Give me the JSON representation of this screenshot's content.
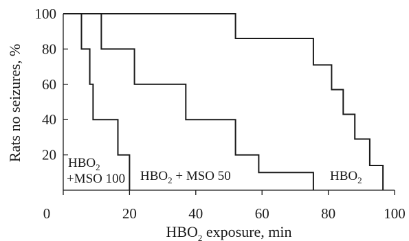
{
  "chart_data": {
    "type": "line",
    "step": true,
    "xlabel": "HBO",
    "xlabel_sub": "2",
    "xlabel_suffix": " exposure, min",
    "ylabel": "Rats no seizures, %",
    "xlim": [
      0,
      100
    ],
    "ylim": [
      0,
      100
    ],
    "xticks": [
      0,
      20,
      40,
      60,
      80,
      100
    ],
    "yticks": [
      20,
      40,
      60,
      80,
      100
    ],
    "grid": false,
    "series": [
      {
        "name": "HBO2 +MSO 100",
        "points": [
          [
            0,
            100
          ],
          [
            5.5,
            100
          ],
          [
            5.5,
            80
          ],
          [
            8,
            80
          ],
          [
            8,
            60
          ],
          [
            9,
            60
          ],
          [
            9,
            40
          ],
          [
            16.5,
            40
          ],
          [
            16.5,
            20
          ],
          [
            20,
            20
          ],
          [
            20,
            0
          ]
        ]
      },
      {
        "name": "HBO2 + MSO 50",
        "points": [
          [
            0,
            100
          ],
          [
            11.5,
            100
          ],
          [
            11.5,
            80
          ],
          [
            21.5,
            80
          ],
          [
            21.5,
            60
          ],
          [
            37,
            60
          ],
          [
            37,
            40
          ],
          [
            52,
            40
          ],
          [
            52,
            20
          ],
          [
            59,
            20
          ],
          [
            59,
            10
          ],
          [
            75.5,
            10
          ],
          [
            75.5,
            0
          ]
        ]
      },
      {
        "name": "HBO2",
        "points": [
          [
            0,
            100
          ],
          [
            52,
            100
          ],
          [
            52,
            86
          ],
          [
            75.5,
            86
          ],
          [
            75.5,
            71
          ],
          [
            81,
            71
          ],
          [
            81,
            57
          ],
          [
            84.5,
            57
          ],
          [
            84.5,
            43
          ],
          [
            88,
            43
          ],
          [
            88,
            29
          ],
          [
            92.5,
            29
          ],
          [
            92.5,
            14
          ],
          [
            96.5,
            14
          ],
          [
            96.5,
            0
          ]
        ]
      }
    ],
    "annotations": [
      {
        "id": "hbo2-mso100",
        "line1_main": "HBO",
        "line1_sub": "2",
        "line2": "+MSO 100"
      },
      {
        "id": "hbo2-mso50",
        "main": "HBO",
        "sub": "2",
        "suffix": " + MSO 50"
      },
      {
        "id": "hbo2",
        "main": "HBO",
        "sub": "2"
      }
    ]
  }
}
